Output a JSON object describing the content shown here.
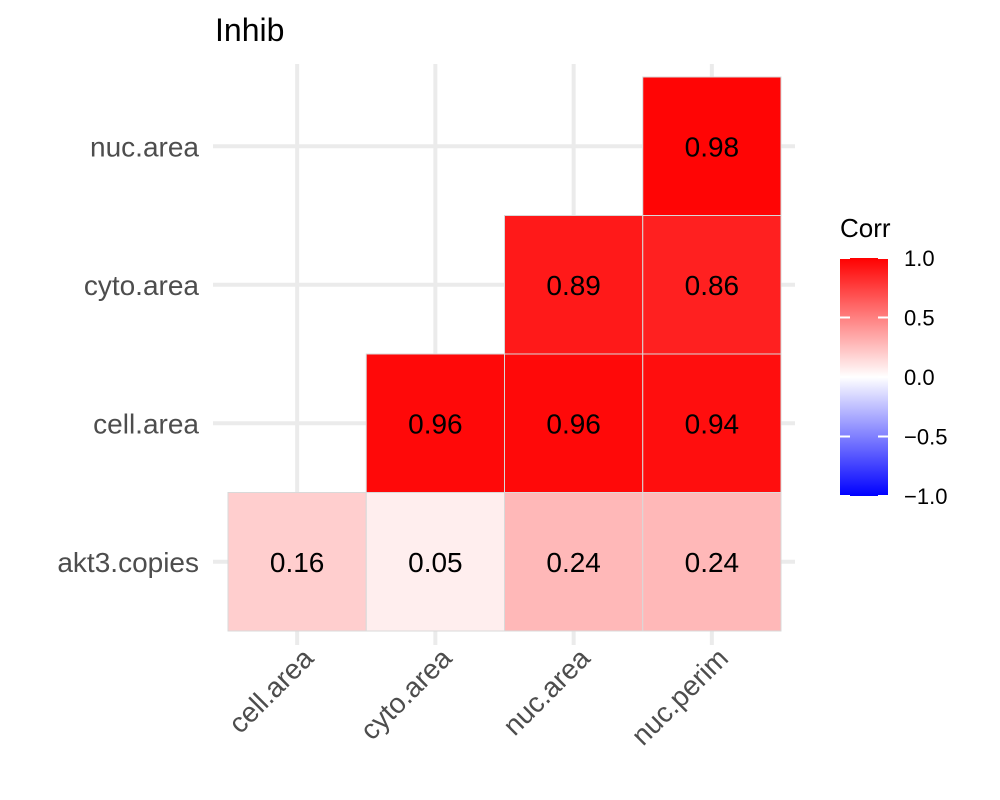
{
  "chart_data": {
    "type": "heatmap",
    "title": "Inhib",
    "x_categories": [
      "cell.area",
      "cyto.area",
      "nuc.area",
      "nuc.perim"
    ],
    "y_categories": [
      "akt3.copies",
      "cell.area",
      "cyto.area",
      "nuc.area"
    ],
    "cells": [
      {
        "x": "cell.area",
        "y": "akt3.copies",
        "value": 0.16,
        "label": "0.16"
      },
      {
        "x": "cyto.area",
        "y": "akt3.copies",
        "value": 0.05,
        "label": "0.05"
      },
      {
        "x": "nuc.area",
        "y": "akt3.copies",
        "value": 0.24,
        "label": "0.24"
      },
      {
        "x": "nuc.perim",
        "y": "akt3.copies",
        "value": 0.24,
        "label": "0.24"
      },
      {
        "x": "cyto.area",
        "y": "cell.area",
        "value": 0.96,
        "label": "0.96"
      },
      {
        "x": "nuc.area",
        "y": "cell.area",
        "value": 0.96,
        "label": "0.96"
      },
      {
        "x": "nuc.perim",
        "y": "cell.area",
        "value": 0.94,
        "label": "0.94"
      },
      {
        "x": "nuc.area",
        "y": "cyto.area",
        "value": 0.89,
        "label": "0.89"
      },
      {
        "x": "nuc.perim",
        "y": "cyto.area",
        "value": 0.86,
        "label": "0.86"
      },
      {
        "x": "nuc.perim",
        "y": "nuc.area",
        "value": 0.98,
        "label": "0.98"
      }
    ],
    "legend": {
      "title": "Corr",
      "ticks": [
        "1.0",
        "0.5",
        "0.0",
        "−0.5",
        "−1.0"
      ],
      "tick_values": [
        1.0,
        0.5,
        0.0,
        -0.5,
        -1.0
      ],
      "range": [
        -1,
        1
      ],
      "colors": {
        "low": "#0000ff",
        "mid": "#ffffff",
        "high": "#ff0000"
      },
      "placement": "right"
    },
    "grid": true
  }
}
